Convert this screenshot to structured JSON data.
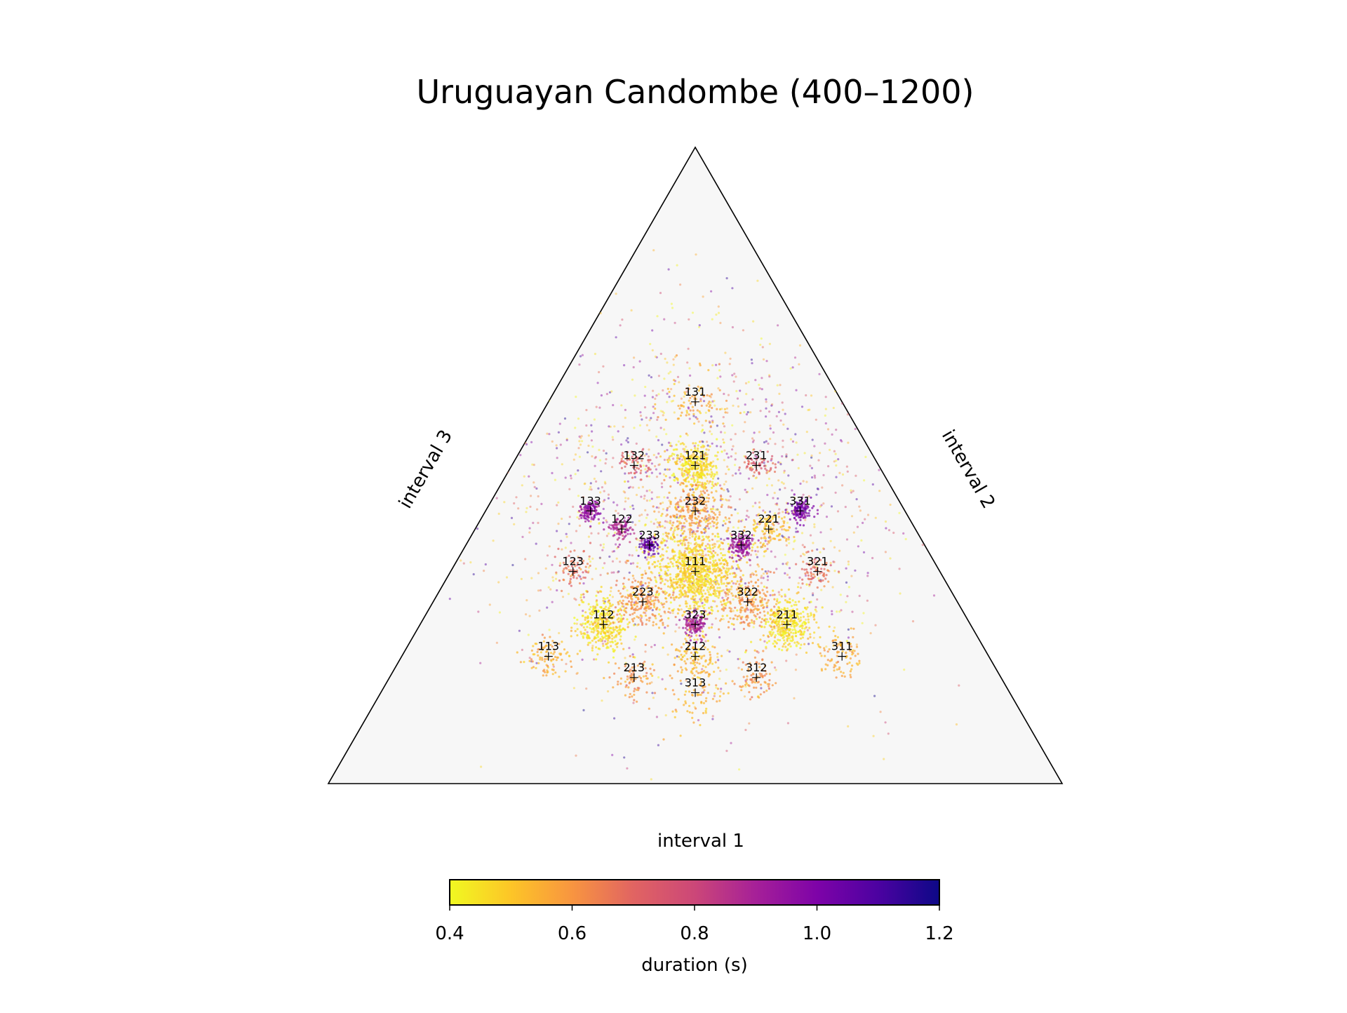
{
  "chart_data": {
    "type": "scatter",
    "subtype": "ternary",
    "title": "Uruguayan Candombe (400–1200)",
    "axes": {
      "bottom": "interval 1",
      "right": "interval 2",
      "left": "interval 3"
    },
    "colorbar": {
      "label": "duration (s)",
      "colormap": "plasma",
      "range": [
        0.4,
        1.2
      ],
      "ticks": [
        "0.4",
        "0.6",
        "0.8",
        "1.0",
        "1.2"
      ]
    },
    "triangle_fill": "#f7f7f7",
    "reference_points": [
      {
        "label": "111",
        "r": [
          1,
          1,
          1
        ]
      },
      {
        "label": "112",
        "r": [
          1,
          1,
          2
        ]
      },
      {
        "label": "113",
        "r": [
          1,
          1,
          3
        ]
      },
      {
        "label": "121",
        "r": [
          1,
          2,
          1
        ]
      },
      {
        "label": "122",
        "r": [
          1,
          2,
          2
        ]
      },
      {
        "label": "123",
        "r": [
          1,
          2,
          3
        ]
      },
      {
        "label": "131",
        "r": [
          1,
          3,
          1
        ]
      },
      {
        "label": "132",
        "r": [
          1,
          3,
          2
        ]
      },
      {
        "label": "133",
        "r": [
          1,
          3,
          3
        ]
      },
      {
        "label": "211",
        "r": [
          2,
          1,
          1
        ]
      },
      {
        "label": "212",
        "r": [
          2,
          1,
          2
        ]
      },
      {
        "label": "213",
        "r": [
          2,
          1,
          3
        ]
      },
      {
        "label": "221",
        "r": [
          2,
          2,
          1
        ]
      },
      {
        "label": "223",
        "r": [
          2,
          2,
          3
        ]
      },
      {
        "label": "231",
        "r": [
          2,
          3,
          1
        ]
      },
      {
        "label": "232",
        "r": [
          2,
          3,
          2
        ]
      },
      {
        "label": "233",
        "r": [
          2,
          3,
          3
        ]
      },
      {
        "label": "311",
        "r": [
          3,
          1,
          1
        ]
      },
      {
        "label": "312",
        "r": [
          3,
          1,
          2
        ]
      },
      {
        "label": "313",
        "r": [
          3,
          1,
          3
        ]
      },
      {
        "label": "321",
        "r": [
          3,
          2,
          1
        ]
      },
      {
        "label": "322",
        "r": [
          3,
          2,
          2
        ]
      },
      {
        "label": "323",
        "r": [
          3,
          2,
          3
        ]
      },
      {
        "label": "331",
        "r": [
          3,
          3,
          1
        ]
      },
      {
        "label": "332",
        "r": [
          3,
          3,
          2
        ]
      }
    ],
    "clusters": [
      {
        "center": "111",
        "spread": 0.055,
        "n": 900,
        "duration": 0.47
      },
      {
        "center": "121",
        "spread": 0.03,
        "n": 320,
        "duration": 0.46
      },
      {
        "center": "112",
        "spread": 0.035,
        "n": 360,
        "duration": 0.45
      },
      {
        "center": "211",
        "spread": 0.035,
        "n": 360,
        "duration": 0.45
      },
      {
        "center": "232",
        "spread": 0.04,
        "n": 260,
        "duration": 0.58
      },
      {
        "center": "223",
        "spread": 0.04,
        "n": 220,
        "duration": 0.6
      },
      {
        "center": "322",
        "spread": 0.04,
        "n": 200,
        "duration": 0.6
      },
      {
        "center": "133",
        "spread": 0.015,
        "n": 120,
        "duration": 0.95
      },
      {
        "center": "331",
        "spread": 0.015,
        "n": 120,
        "duration": 1.0
      },
      {
        "center": "323",
        "spread": 0.015,
        "n": 140,
        "duration": 0.9
      },
      {
        "center": "332",
        "spread": 0.015,
        "n": 140,
        "duration": 0.92
      },
      {
        "center": "233",
        "spread": 0.012,
        "n": 90,
        "duration": 1.05
      },
      {
        "center": "122",
        "spread": 0.015,
        "n": 90,
        "duration": 0.88
      },
      {
        "center": "132",
        "spread": 0.02,
        "n": 60,
        "duration": 0.72
      },
      {
        "center": "231",
        "spread": 0.02,
        "n": 60,
        "duration": 0.72
      },
      {
        "center": "123",
        "spread": 0.025,
        "n": 70,
        "duration": 0.68
      },
      {
        "center": "321",
        "spread": 0.025,
        "n": 70,
        "duration": 0.68
      },
      {
        "center": "113",
        "spread": 0.03,
        "n": 90,
        "duration": 0.55
      },
      {
        "center": "311",
        "spread": 0.03,
        "n": 90,
        "duration": 0.55
      },
      {
        "center": "213",
        "spread": 0.03,
        "n": 80,
        "duration": 0.6
      },
      {
        "center": "312",
        "spread": 0.03,
        "n": 80,
        "duration": 0.6
      },
      {
        "center": "212",
        "spread": 0.03,
        "n": 110,
        "duration": 0.52
      },
      {
        "center": "221",
        "spread": 0.03,
        "n": 110,
        "duration": 0.52
      },
      {
        "center": "131",
        "spread": 0.04,
        "n": 80,
        "duration": 0.55
      },
      {
        "center": "313",
        "spread": 0.04,
        "n": 80,
        "duration": 0.55
      }
    ],
    "background_scatter": {
      "n": 1600,
      "duration_range": [
        0.4,
        1.2
      ]
    }
  }
}
